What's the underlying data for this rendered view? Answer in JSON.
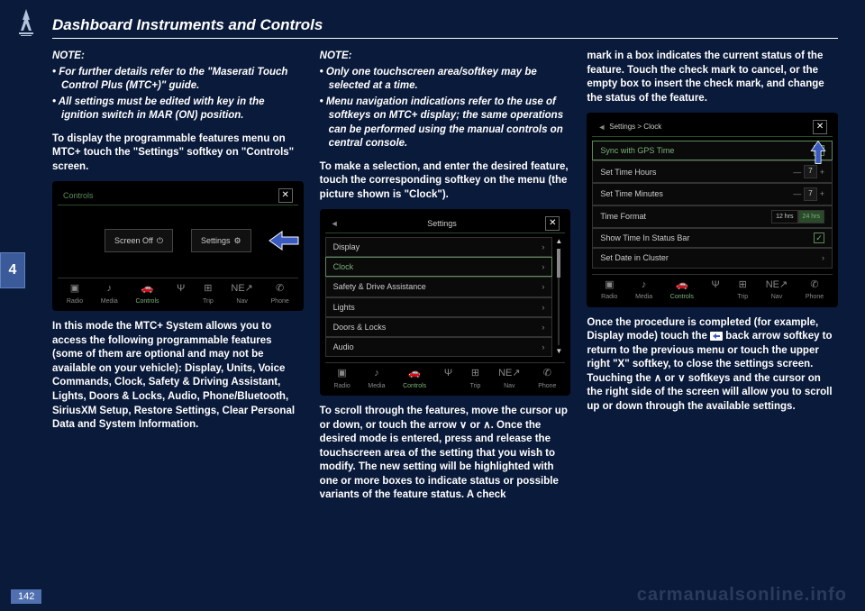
{
  "header": {
    "title": "Dashboard Instruments and Controls",
    "chapter": "4",
    "page": "142"
  },
  "col1": {
    "note_label": "NOTE:",
    "note1": "• For further details refer to the \"Maserati Touch Control Plus (MTC+)\" guide.",
    "note2": "• All settings must be edited with key in the ignition switch in MAR (ON) position.",
    "p1": "To display the programmable features menu on MTC+ touch the \"Settings\" softkey on \"Controls\" screen.",
    "p2": "In this mode the MTC+ System allows you to access the following programmable features (some of them are optional and may not be available on your vehicle): Display, Units, Voice Commands, Clock, Safety & Driving Assistant, Lights, Doors & Locks, Audio, Phone/Bluetooth, SiriusXM Setup, Restore Settings, Clear Personal Data and System Information."
  },
  "col2": {
    "note_label": "NOTE:",
    "note1": "• Only one touchscreen area/softkey may be selected at a time.",
    "note2": "• Menu navigation indications refer to the use of softkeys on MTC+ display; the same operations can be performed using the manual controls on central console.",
    "p1": "To make a selection, and enter the desired feature, touch the corresponding softkey on the menu (the picture shown is \"Clock\").",
    "p2": "To scroll through the features, move the cursor up or down, or touch the arrow ∨ or ∧. Once the desired mode is entered, press and release the touchscreen area of the setting that you wish to modify. The new setting will be highlighted with one or more boxes to indicate status or possible variants of the feature status. A check"
  },
  "col3": {
    "p1": "mark in a box indicates the current status of the feature. Touch the check mark to cancel, or the empty box to insert the check mark, and change the status of the feature.",
    "p2a": "Once the procedure is completed (for example, Display mode) touch the",
    "p2b": "back arrow softkey to return to the previous menu or touch the upper right \"X\" softkey, to close the settings screen. Touching the ∧ or ∨ softkeys and the cursor on the right side of the screen will allow you to scroll up or down through the available settings."
  },
  "screenshot1": {
    "header": "Controls",
    "btn1": "Screen Off",
    "btn2": "Settings",
    "nav": [
      "Radio",
      "Media",
      "Controls",
      "",
      "Trip",
      "Nav",
      "Phone"
    ],
    "nav_icons": [
      "▣",
      "♪",
      "🚗",
      "Ψ",
      "⊞",
      "NE↗",
      "✆"
    ]
  },
  "screenshot2": {
    "header": "Settings",
    "items": [
      "Display",
      "Clock",
      "Safety & Drive Assistance",
      "Lights",
      "Doors & Locks",
      "Audio"
    ],
    "active_idx": 1,
    "nav": [
      "Radio",
      "Media",
      "Controls",
      "",
      "Trip",
      "Nav",
      "Phone"
    ],
    "nav_icons": [
      "▣",
      "♪",
      "🚗",
      "Ψ",
      "⊞",
      "NE↗",
      "✆"
    ]
  },
  "screenshot3": {
    "breadcrumb": "Settings > Clock",
    "items": [
      {
        "label": "Sync with GPS Time",
        "type": "check",
        "checked": true
      },
      {
        "label": "Set Time Hours",
        "type": "stepper",
        "value": "7"
      },
      {
        "label": "Set Time Minutes",
        "type": "stepper",
        "value": "7"
      },
      {
        "label": "Time Format",
        "type": "toggle",
        "opts": [
          "12 hrs",
          "24 hrs"
        ]
      },
      {
        "label": "Show Time In Status Bar",
        "type": "check",
        "checked": true
      },
      {
        "label": "Set Date in Cluster",
        "type": "chevron"
      }
    ],
    "nav": [
      "Radio",
      "Media",
      "Controls",
      "",
      "Trip",
      "Nav",
      "Phone"
    ],
    "nav_icons": [
      "▣",
      "♪",
      "🚗",
      "Ψ",
      "⊞",
      "NE↗",
      "✆"
    ]
  },
  "watermark": "carmanualsonline.info",
  "colors": {
    "bg": "#0a1a3a",
    "accent": "#5a8a5a",
    "arrow": "#3a5ac0"
  }
}
